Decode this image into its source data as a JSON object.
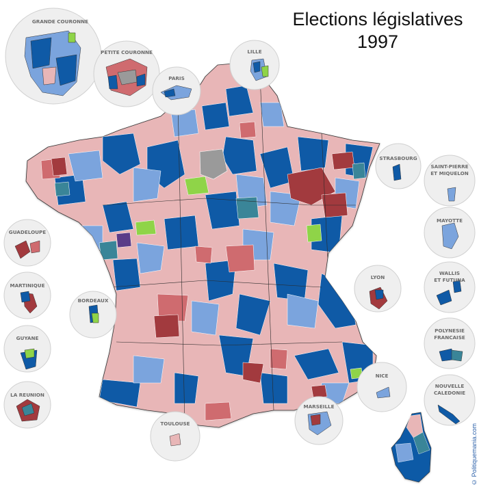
{
  "title": {
    "line1": "Elections législatives",
    "line2": "1997"
  },
  "credit": "© Politiquemania.com",
  "colors": {
    "strong_left": "#a23a3e",
    "mid_left": "#cf6b6f",
    "light_left": "#e8b6b7",
    "green": "#8fd448",
    "teal": "#3a8598",
    "strong_right": "#0f5aa6",
    "light_right": "#7ba4dd",
    "purple": "#5a3c88",
    "grey": "#9a9a9a",
    "inset_bg": "#efefef"
  },
  "insets": {
    "grande_couronne": "GRANDE COURONNE",
    "petite_couronne": "PETITE COURONNE",
    "paris": "PARIS",
    "lille": "LILLE",
    "strasbourg": "STRASBOURG",
    "saint_pierre_l1": "SAINT-PIERRE",
    "saint_pierre_l2": "ET MIQUELON",
    "mayotte": "MAYOTTE",
    "wallis_l1": "WALLIS",
    "wallis_l2": "ET FUTUNA",
    "polynesie_l1": "POLYNESIE",
    "polynesie_l2": "FRANCAISE",
    "nouvelle_l1": "NOUVELLE",
    "nouvelle_l2": "CALEDONIE",
    "guadeloupe": "GUADELOUPE",
    "martinique": "MARTINIQUE",
    "guyane": "GUYANE",
    "la_reunion": "LA REUNION",
    "bordeaux": "BORDEAUX",
    "lyon": "LYON",
    "nice": "NICE",
    "marseille": "MARSEILLE",
    "toulouse": "TOULOUSE"
  }
}
